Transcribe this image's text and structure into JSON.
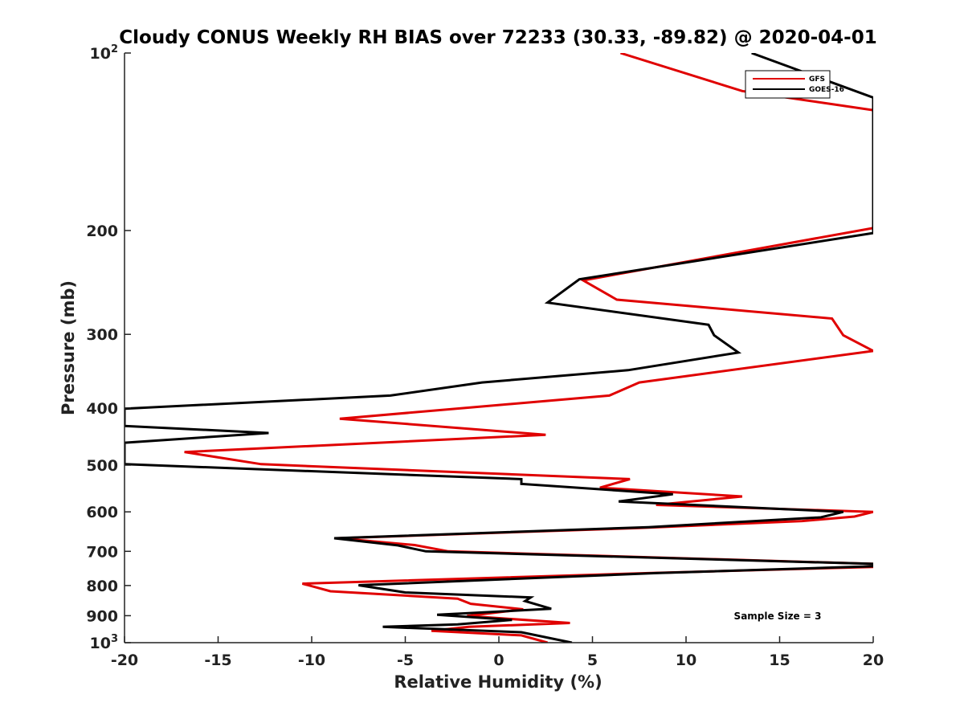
{
  "chart_data": {
    "type": "line",
    "title": "Cloudy CONUS Weekly RH BIAS over 72233 (30.33, -89.82) @ 2020-04-01",
    "xlabel": "Relative Humidity (%)",
    "ylabel": "Pressure (mb)",
    "xlim": [
      -20,
      20
    ],
    "ylim": [
      100,
      1000
    ],
    "yscale": "log",
    "y_reversed": true,
    "x_ticks": [
      -20,
      -15,
      -10,
      -5,
      0,
      5,
      10,
      15,
      20
    ],
    "x_tick_labels": [
      "-20",
      "-15",
      "-10",
      "-5",
      "0",
      "5",
      "10",
      "15",
      "20"
    ],
    "y_ticks": [
      100,
      200,
      300,
      400,
      500,
      600,
      700,
      800,
      900,
      1000
    ],
    "y_tick_labels": [
      {
        "value": 100,
        "base": "10",
        "exp": "2"
      },
      {
        "value": 200,
        "base": "200",
        "exp": ""
      },
      {
        "value": 300,
        "base": "300",
        "exp": ""
      },
      {
        "value": 400,
        "base": "400",
        "exp": ""
      },
      {
        "value": 500,
        "base": "500",
        "exp": ""
      },
      {
        "value": 600,
        "base": "600",
        "exp": ""
      },
      {
        "value": 700,
        "base": "700",
        "exp": ""
      },
      {
        "value": 800,
        "base": "800",
        "exp": ""
      },
      {
        "value": 900,
        "base": "900",
        "exp": ""
      },
      {
        "value": 1000,
        "base": "10",
        "exp": "3"
      }
    ],
    "grid": false,
    "legend_position": "top-right",
    "annotation": "Sample Size = 3",
    "series": [
      {
        "name": "GFS",
        "color": "#e00000",
        "points": [
          [
            6.5,
            100
          ],
          [
            13,
            116
          ],
          [
            20,
            125
          ],
          [
            20,
            198
          ],
          [
            4.5,
            243
          ],
          [
            6.3,
            262
          ],
          [
            17.8,
            282
          ],
          [
            18.4,
            301
          ],
          [
            20,
            320
          ],
          [
            7.5,
            362
          ],
          [
            5.9,
            381
          ],
          [
            -8.5,
            417
          ],
          [
            2.5,
            444
          ],
          [
            -16.8,
            475
          ],
          [
            -12.7,
            498
          ],
          [
            7.0,
            528
          ],
          [
            5.4,
            546
          ],
          [
            13.0,
            565
          ],
          [
            8.4,
            584
          ],
          [
            20,
            600
          ],
          [
            19.0,
            611
          ],
          [
            16.2,
            622
          ],
          [
            7.5,
            639
          ],
          [
            -8.6,
            665
          ],
          [
            -4.5,
            683
          ],
          [
            -2.7,
            700
          ],
          [
            20,
            735
          ],
          [
            20,
            744
          ],
          [
            8.0,
            762
          ],
          [
            -10.5,
            794
          ],
          [
            -9.0,
            818
          ],
          [
            -2.2,
            842
          ],
          [
            -1.5,
            859
          ],
          [
            1.3,
            878
          ],
          [
            -1.7,
            901
          ],
          [
            3.8,
            926
          ],
          [
            -1.6,
            940
          ],
          [
            -3.6,
            955
          ],
          [
            1.2,
            972
          ],
          [
            2.6,
            1000
          ]
        ]
      },
      {
        "name": "GOES-16",
        "color": "#000000",
        "points": [
          [
            13.5,
            100
          ],
          [
            20,
            119
          ],
          [
            20,
            202
          ],
          [
            4.3,
            242
          ],
          [
            2.6,
            265
          ],
          [
            11.2,
            289
          ],
          [
            11.5,
            301
          ],
          [
            12.8,
            322
          ],
          [
            6.9,
            345
          ],
          [
            -0.9,
            362
          ],
          [
            -5.8,
            381
          ],
          [
            -20,
            401
          ],
          [
            -20,
            429
          ],
          [
            -12.3,
            441
          ],
          [
            -20,
            458
          ],
          [
            -20,
            498
          ],
          [
            1.2,
            528
          ],
          [
            1.2,
            538
          ],
          [
            9.3,
            560
          ],
          [
            6.4,
            576
          ],
          [
            18.4,
            600
          ],
          [
            17.2,
            613
          ],
          [
            8.0,
            637
          ],
          [
            -8.8,
            665
          ],
          [
            -5.4,
            684
          ],
          [
            -3.9,
            700
          ],
          [
            20,
            735
          ],
          [
            20,
            742
          ],
          [
            8.4,
            762
          ],
          [
            -7.5,
            799
          ],
          [
            -5.0,
            822
          ],
          [
            1.7,
            838
          ],
          [
            1.4,
            850
          ],
          [
            2.8,
            876
          ],
          [
            -3.3,
            897
          ],
          [
            0.7,
            915
          ],
          [
            -2.2,
            931
          ],
          [
            -6.2,
            940
          ],
          [
            1.2,
            960
          ],
          [
            3.9,
            1000
          ]
        ]
      }
    ]
  }
}
